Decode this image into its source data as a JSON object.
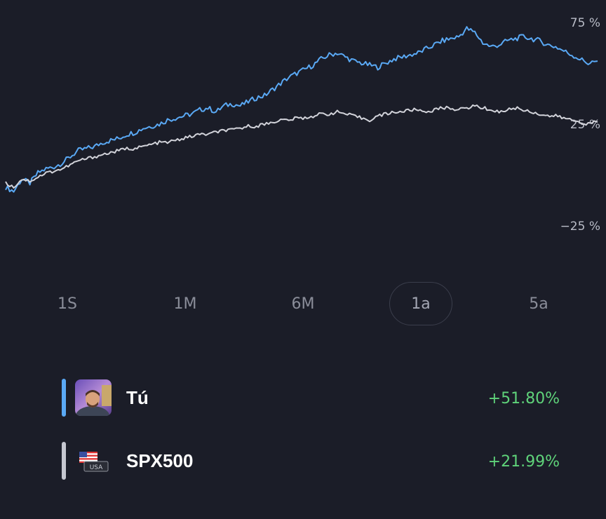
{
  "chart_data": {
    "type": "line",
    "y_ticks": [
      "75 %",
      "25 %",
      "−25 %"
    ],
    "y_tick_values": [
      75,
      25,
      -25
    ],
    "ylim": [
      -40,
      85
    ],
    "grid": false,
    "series": [
      {
        "color": "#5aa9f5",
        "values": [
          -6,
          -8,
          -2,
          -4,
          1,
          3,
          4,
          6,
          9,
          12,
          13,
          14,
          16,
          17,
          18,
          20,
          21,
          23,
          24,
          25,
          27,
          28,
          29,
          30,
          32,
          33,
          31,
          34,
          35,
          34,
          36,
          38,
          39,
          42,
          45,
          48,
          50,
          52,
          54,
          57,
          59,
          60,
          58,
          56,
          55,
          54,
          53,
          55,
          57,
          58,
          59,
          60,
          62,
          64,
          66,
          67,
          68,
          72,
          70,
          65,
          63,
          64,
          66,
          67,
          68,
          67,
          66,
          64,
          63,
          61,
          59,
          57,
          55,
          56
        ]
      },
      {
        "color": "#d2d3da",
        "values": [
          -4,
          -6,
          -2,
          -3,
          -1,
          1,
          2,
          3,
          5,
          7,
          8,
          9,
          10,
          11,
          12,
          13,
          13,
          14,
          15,
          16,
          16,
          17,
          18,
          19,
          20,
          20,
          21,
          22,
          22,
          23,
          24,
          24,
          25,
          26,
          27,
          27,
          28,
          28,
          29,
          30,
          30,
          31,
          30,
          29,
          28,
          27,
          29,
          30,
          31,
          31,
          32,
          32,
          31,
          32,
          33,
          33,
          32,
          33,
          34,
          33,
          32,
          31,
          32,
          33,
          32,
          31,
          30,
          29,
          29,
          28,
          27,
          26,
          25,
          26
        ]
      }
    ]
  },
  "ranges": [
    "1S",
    "1M",
    "6M",
    "1a",
    "5a"
  ],
  "active_range": "1a",
  "legend": [
    {
      "name": "Tú",
      "change": "+51.80%",
      "color": "#5aa9f5",
      "icon": "user-avatar-photo"
    },
    {
      "name": "SPX500",
      "change": "+21.99%",
      "color": "#c5c7d0",
      "icon": "usa-flag-icon"
    }
  ],
  "flag_text": "USA"
}
